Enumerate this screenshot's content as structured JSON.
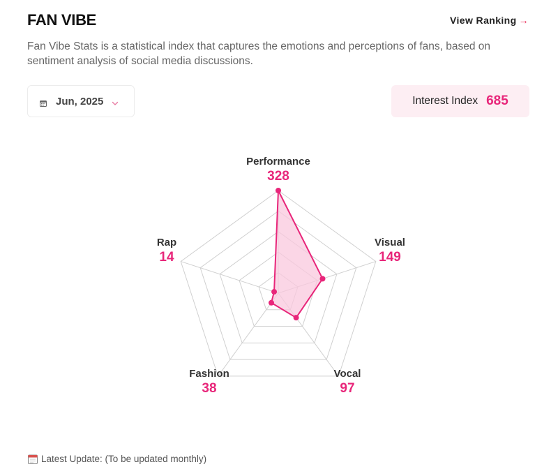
{
  "header": {
    "title": "FAN VIBE",
    "view_ranking_label": "View Ranking",
    "description": "Fan Vibe Stats is a statistical index that captures the emotions and perceptions of fans, based on sentiment analysis of social media discussions."
  },
  "date_select": {
    "selected": "Jun, 2025",
    "icon": "calendar-icon"
  },
  "interest_index": {
    "label": "Interest Index",
    "value": "685"
  },
  "chart_data": {
    "type": "radar",
    "categories": [
      "Performance",
      "Visual",
      "Vocal",
      "Fashion",
      "Rap"
    ],
    "values": [
      328,
      149,
      97,
      38,
      14
    ],
    "rmax": 328,
    "grid_levels": 5,
    "colors": {
      "line": "#e8267a",
      "fill": "#f9c8dd",
      "grid": "#d0d0d0",
      "value_text": "#e8267a"
    }
  },
  "footer": {
    "icon": "calendar-icon",
    "text": "Latest Update: (To be updated monthly)"
  }
}
